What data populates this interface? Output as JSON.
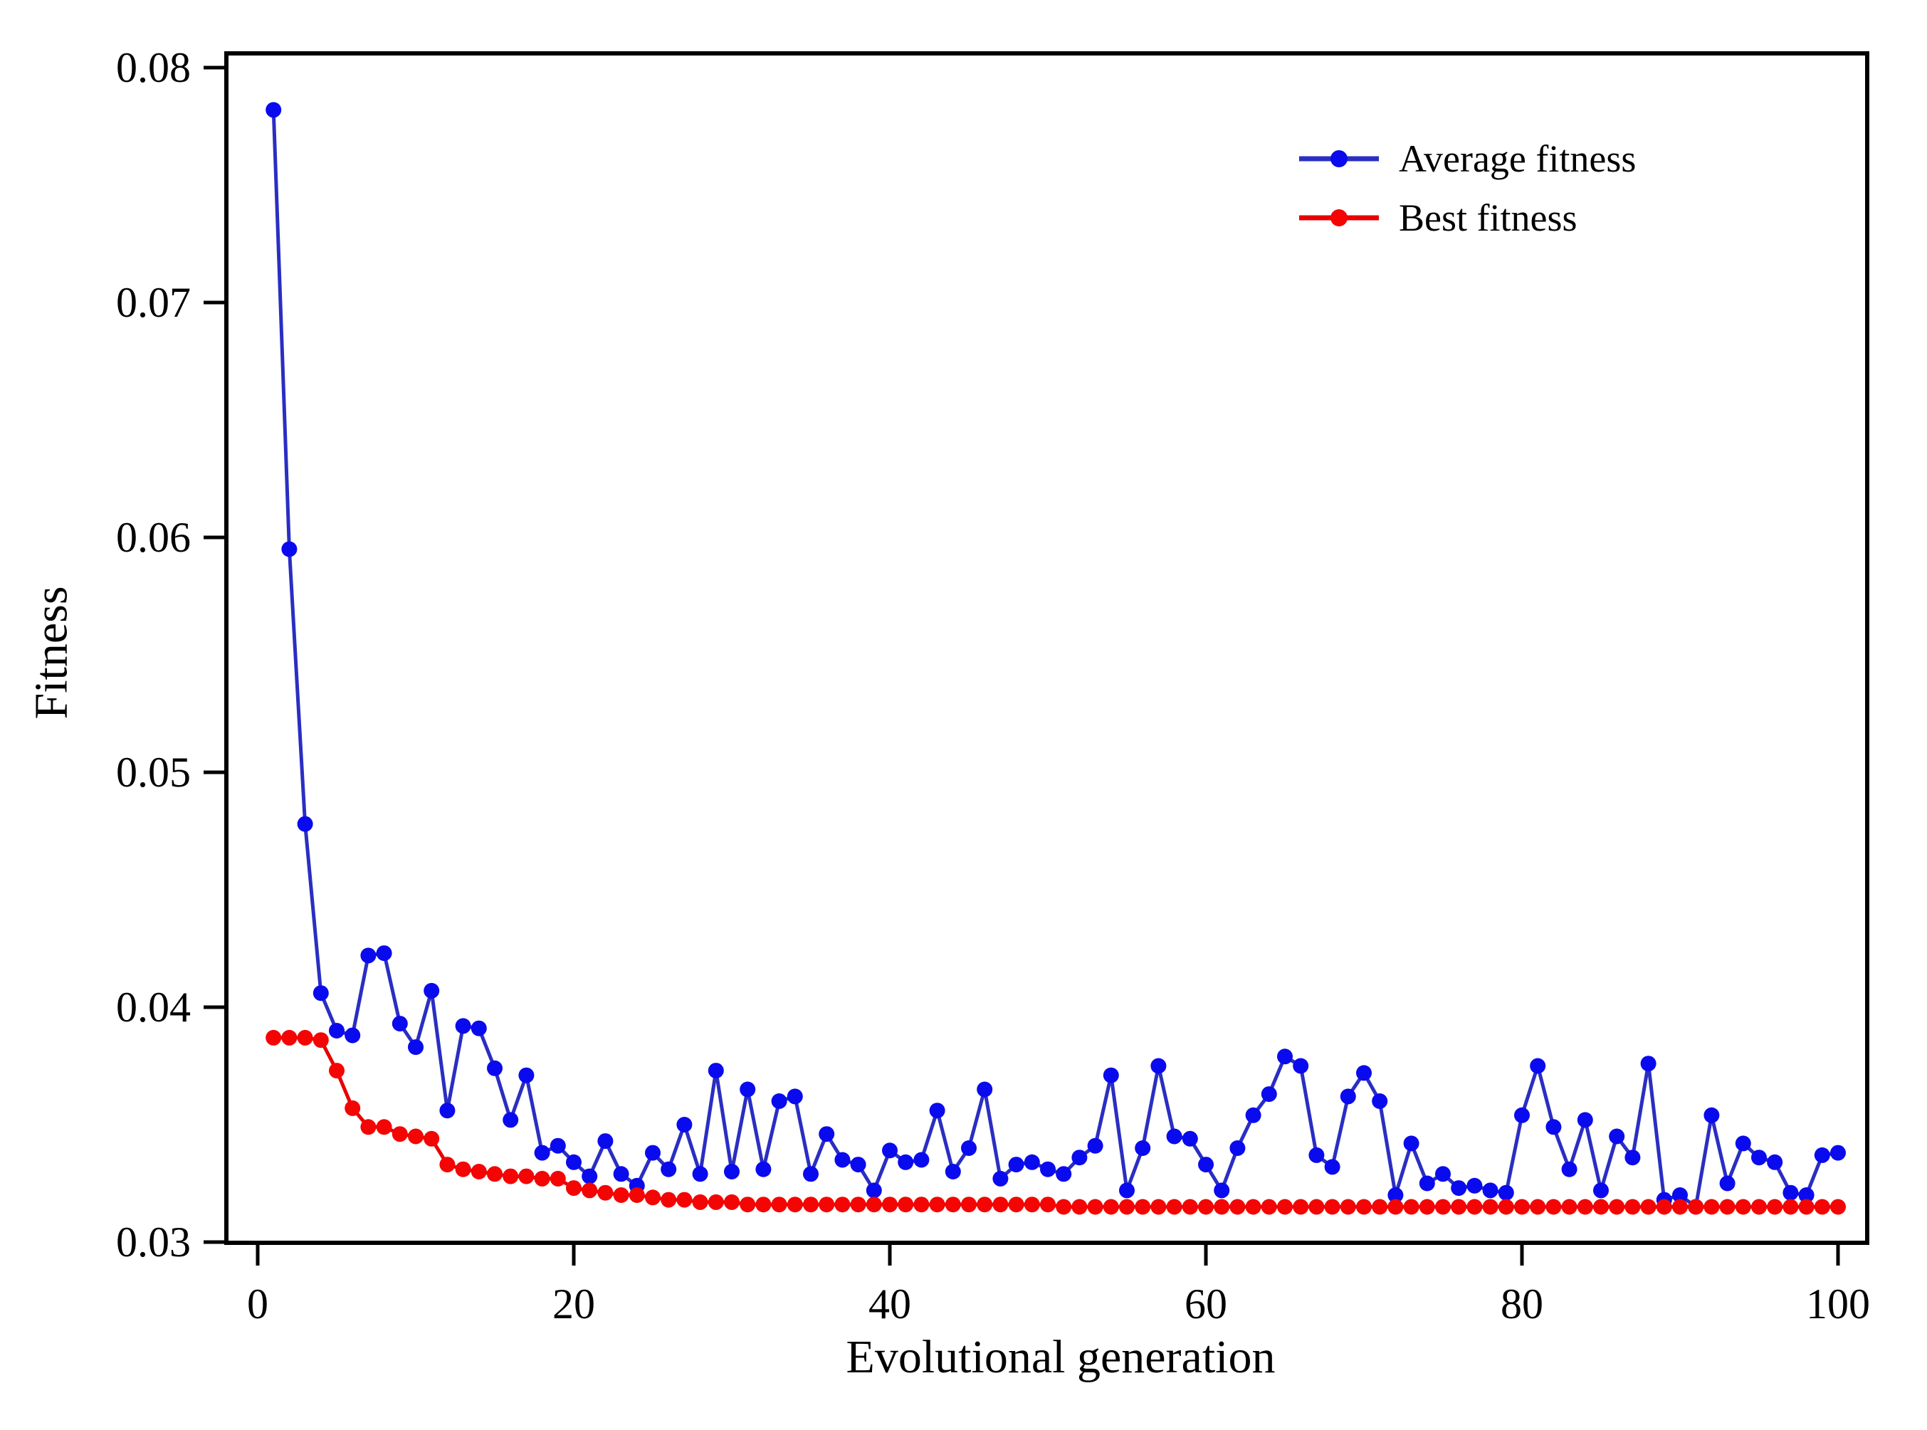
{
  "chart_data": {
    "type": "line",
    "title": "",
    "xlabel": "Evolutional generation",
    "ylabel": "Fitness",
    "xlim": [
      -2,
      102
    ],
    "ylim": [
      0.03,
      0.08
    ],
    "grid": false,
    "legend_position": "top-right",
    "frame": true,
    "axis_color": "#000000",
    "x_ticks": [
      {
        "value": 0,
        "label": "0"
      },
      {
        "value": 20,
        "label": "20"
      },
      {
        "value": 40,
        "label": "40"
      },
      {
        "value": 60,
        "label": "60"
      },
      {
        "value": 80,
        "label": "80"
      },
      {
        "value": 100,
        "label": "100"
      }
    ],
    "y_ticks": [
      {
        "value": 0.03,
        "label": "0.03"
      },
      {
        "value": 0.04,
        "label": "0.04"
      },
      {
        "value": 0.05,
        "label": "0.05"
      },
      {
        "value": 0.06,
        "label": "0.06"
      },
      {
        "value": 0.07,
        "label": "0.07"
      },
      {
        "value": 0.08,
        "label": "0.08"
      }
    ],
    "x": [
      1,
      2,
      3,
      4,
      5,
      6,
      7,
      8,
      9,
      10,
      11,
      12,
      13,
      14,
      15,
      16,
      17,
      18,
      19,
      20,
      21,
      22,
      23,
      24,
      25,
      26,
      27,
      28,
      29,
      30,
      31,
      32,
      33,
      34,
      35,
      36,
      37,
      38,
      39,
      40,
      41,
      42,
      43,
      44,
      45,
      46,
      47,
      48,
      49,
      50,
      51,
      52,
      53,
      54,
      55,
      56,
      57,
      58,
      59,
      60,
      61,
      62,
      63,
      64,
      65,
      66,
      67,
      68,
      69,
      70,
      71,
      72,
      73,
      74,
      75,
      76,
      77,
      78,
      79,
      80,
      81,
      82,
      83,
      84,
      85,
      86,
      87,
      88,
      89,
      90,
      91,
      92,
      93,
      94,
      95,
      96,
      97,
      98,
      99,
      100
    ],
    "series": [
      {
        "name": "Average fitness",
        "slug": "average-fitness",
        "line_color": "#2a2ec2",
        "marker_color": "#0a0aee",
        "values": [
          0.0782,
          0.0595,
          0.0478,
          0.0406,
          0.039,
          0.0388,
          0.0422,
          0.0423,
          0.0393,
          0.0383,
          0.0407,
          0.0356,
          0.0392,
          0.0391,
          0.0374,
          0.0352,
          0.0371,
          0.0338,
          0.0341,
          0.0334,
          0.0328,
          0.0343,
          0.0329,
          0.0324,
          0.0338,
          0.0331,
          0.035,
          0.0329,
          0.0373,
          0.033,
          0.0365,
          0.0331,
          0.036,
          0.0362,
          0.0329,
          0.0346,
          0.0335,
          0.0333,
          0.0322,
          0.0339,
          0.0334,
          0.0335,
          0.0356,
          0.033,
          0.034,
          0.0365,
          0.0327,
          0.0333,
          0.0334,
          0.0331,
          0.0329,
          0.0336,
          0.0341,
          0.0371,
          0.0322,
          0.034,
          0.0375,
          0.0345,
          0.0344,
          0.0333,
          0.0322,
          0.034,
          0.0354,
          0.0363,
          0.0379,
          0.0375,
          0.0337,
          0.0332,
          0.0362,
          0.0372,
          0.036,
          0.032,
          0.0342,
          0.0325,
          0.0329,
          0.0323,
          0.0324,
          0.0322,
          0.0321,
          0.0354,
          0.0375,
          0.0349,
          0.0331,
          0.0352,
          0.0322,
          0.0345,
          0.0336,
          0.0376,
          0.0318,
          0.032,
          0.0315,
          0.0354,
          0.0325,
          0.0342,
          0.0336,
          0.0334,
          0.0321,
          0.032,
          0.0337,
          0.0338
        ]
      },
      {
        "name": "Best fitness",
        "slug": "best-fitness",
        "line_color": "#e80000",
        "marker_color": "#f50404",
        "values": [
          0.0387,
          0.0387,
          0.0387,
          0.0386,
          0.0373,
          0.0357,
          0.0349,
          0.0349,
          0.0346,
          0.0345,
          0.0344,
          0.0333,
          0.0331,
          0.033,
          0.0329,
          0.0328,
          0.0328,
          0.0327,
          0.0327,
          0.0323,
          0.0322,
          0.0321,
          0.032,
          0.032,
          0.0319,
          0.0318,
          0.0318,
          0.0317,
          0.0317,
          0.0317,
          0.0316,
          0.0316,
          0.0316,
          0.0316,
          0.0316,
          0.0316,
          0.0316,
          0.0316,
          0.0316,
          0.0316,
          0.0316,
          0.0316,
          0.0316,
          0.0316,
          0.0316,
          0.0316,
          0.0316,
          0.0316,
          0.0316,
          0.0316,
          0.0315,
          0.0315,
          0.0315,
          0.0315,
          0.0315,
          0.0315,
          0.0315,
          0.0315,
          0.0315,
          0.0315,
          0.0315,
          0.0315,
          0.0315,
          0.0315,
          0.0315,
          0.0315,
          0.0315,
          0.0315,
          0.0315,
          0.0315,
          0.0315,
          0.0315,
          0.0315,
          0.0315,
          0.0315,
          0.0315,
          0.0315,
          0.0315,
          0.0315,
          0.0315,
          0.0315,
          0.0315,
          0.0315,
          0.0315,
          0.0315,
          0.0315,
          0.0315,
          0.0315,
          0.0315,
          0.0315,
          0.0315,
          0.0315,
          0.0315,
          0.0315,
          0.0315,
          0.0315,
          0.0315,
          0.0315,
          0.0315,
          0.0315
        ]
      }
    ]
  }
}
